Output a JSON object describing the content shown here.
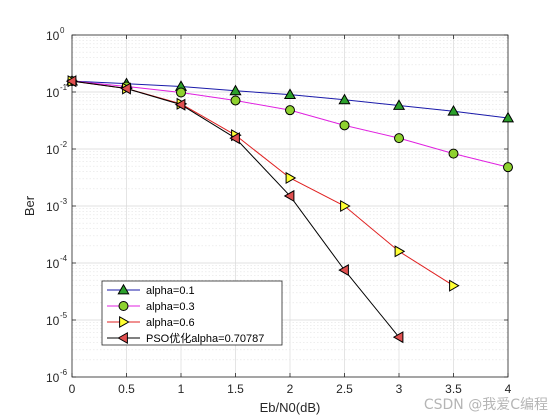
{
  "chart_data": {
    "type": "line",
    "title": "",
    "xlabel": "Eb/N0(dB)",
    "ylabel": "Ber",
    "xlim": [
      0,
      4
    ],
    "ylim_log10": [
      -6,
      0
    ],
    "y_scale": "log",
    "grid": "major and minor",
    "legend_position": "bottom-left",
    "x_ticks": [
      "0",
      "0.5",
      "1",
      "1.5",
      "2",
      "2.5",
      "3",
      "3.5",
      "4"
    ],
    "y_ticks": [
      {
        "exp": 0,
        "label": "10",
        "sup": "0"
      },
      {
        "exp": -1,
        "label": "10",
        "sup": "-1"
      },
      {
        "exp": -2,
        "label": "10",
        "sup": "-2"
      },
      {
        "exp": -3,
        "label": "10",
        "sup": "-3"
      },
      {
        "exp": -4,
        "label": "10",
        "sup": "-4"
      },
      {
        "exp": -5,
        "label": "10",
        "sup": "-5"
      },
      {
        "exp": -6,
        "label": "10",
        "sup": "-6"
      }
    ],
    "series": [
      {
        "name": "alpha=0.1",
        "color": "#1a1aaa",
        "marker": "triangle-up",
        "marker_fill": "#2ca02c",
        "x": [
          0,
          0.5,
          1,
          1.5,
          2,
          2.5,
          3,
          3.5,
          4
        ],
        "y": [
          0.155,
          0.14,
          0.125,
          0.105,
          0.09,
          0.073,
          0.058,
          0.046,
          0.035
        ]
      },
      {
        "name": "alpha=0.3",
        "color": "#e020e0",
        "marker": "circle",
        "marker_fill": "#8ed12e",
        "x": [
          0,
          0.5,
          1,
          1.5,
          2,
          2.5,
          3,
          3.5,
          4
        ],
        "y": [
          0.155,
          0.125,
          0.098,
          0.071,
          0.048,
          0.026,
          0.0155,
          0.0083,
          0.0048
        ]
      },
      {
        "name": "alpha=0.6",
        "color": "#e02020",
        "marker": "triangle-right",
        "marker_fill": "#ffff33",
        "x": [
          0,
          0.5,
          1,
          1.5,
          2,
          2.5,
          3,
          3.5
        ],
        "y": [
          0.155,
          0.115,
          0.062,
          0.0175,
          0.0031,
          0.001,
          0.00016,
          4e-05
        ]
      },
      {
        "name": "PSO优化alpha=0.70787",
        "color": "#000000",
        "marker": "triangle-left",
        "marker_fill": "#e05050",
        "x": [
          0,
          0.5,
          1,
          1.5,
          2,
          2.5,
          3
        ],
        "y": [
          0.155,
          0.115,
          0.06,
          0.0155,
          0.0015,
          7.5e-05,
          5e-06
        ]
      }
    ]
  },
  "watermark": "CSDN @我爱C编程"
}
